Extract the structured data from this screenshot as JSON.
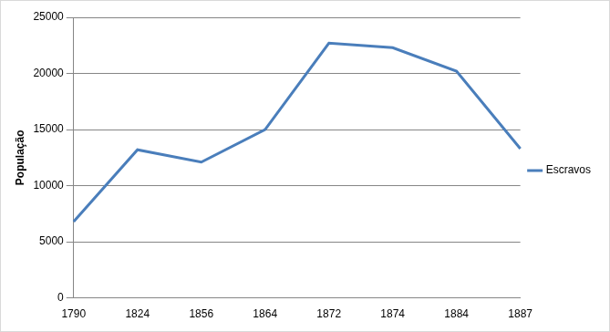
{
  "chart_data": {
    "type": "line",
    "y_label": "População",
    "categories": [
      "1790",
      "1824",
      "1856",
      "1864",
      "1872",
      "1874",
      "1884",
      "1887"
    ],
    "series": [
      {
        "name": "Escravos",
        "color": "#4a7ebb",
        "marker": "none",
        "line_style": "solid",
        "values": [
          6800,
          13200,
          12100,
          15000,
          22700,
          22300,
          20200,
          13300
        ]
      }
    ],
    "ylim": [
      0,
      25000
    ],
    "yticks": [
      0,
      5000,
      10000,
      15000,
      20000,
      25000
    ],
    "grid": true,
    "legend": "right"
  }
}
